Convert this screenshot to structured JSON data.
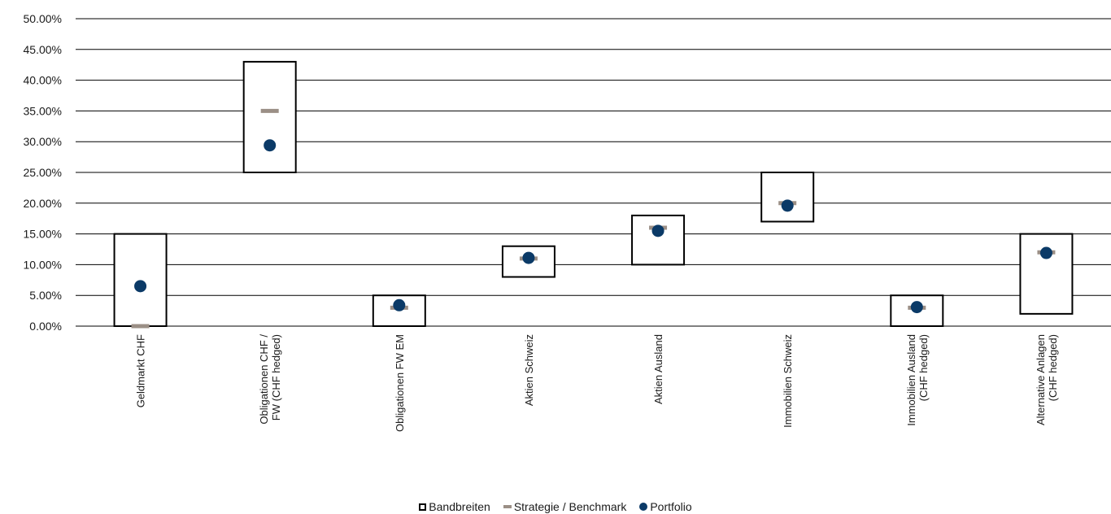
{
  "chart_data": {
    "type": "range-dot",
    "ylim": [
      0,
      50
    ],
    "yticks": [
      "0.00%",
      "5.00%",
      "10.00%",
      "15.00%",
      "20.00%",
      "25.00%",
      "30.00%",
      "35.00%",
      "40.00%",
      "45.00%",
      "50.00%"
    ],
    "categories": [
      [
        "Geldmarkt CHF"
      ],
      [
        "Obligationen CHF /",
        "FW (CHF hedged)"
      ],
      [
        "Obligationen FW EM"
      ],
      [
        "Aktien Schweiz"
      ],
      [
        "Aktien Ausland"
      ],
      [
        "Immobilien Schweiz"
      ],
      [
        "Immobilien Ausland",
        "(CHF hedged)"
      ],
      [
        "Alternative Anlagen",
        "(CHF hedged)"
      ]
    ],
    "series": [
      {
        "name": "Bandbreiten",
        "kind": "range",
        "low": [
          0,
          25,
          0,
          8,
          10,
          17,
          0,
          2
        ],
        "high": [
          15,
          43,
          5,
          13,
          18,
          25,
          5,
          15
        ]
      },
      {
        "name": "Strategie / Benchmark",
        "kind": "dash",
        "values": [
          0,
          35,
          3,
          11,
          16,
          20,
          3,
          12
        ]
      },
      {
        "name": "Portfolio",
        "kind": "dot",
        "values": [
          6.5,
          29.4,
          3.4,
          11.1,
          15.5,
          19.6,
          3.1,
          11.9
        ]
      }
    ],
    "colors": {
      "range": "#000000",
      "dash": "#9b8f86",
      "dot": "#0b3a67",
      "grid": "#000000"
    },
    "legend_position": "bottom-center"
  },
  "legend": {
    "range_label": "Bandbreiten",
    "dash_label": "Strategie / Benchmark",
    "dot_label": "Portfolio"
  }
}
